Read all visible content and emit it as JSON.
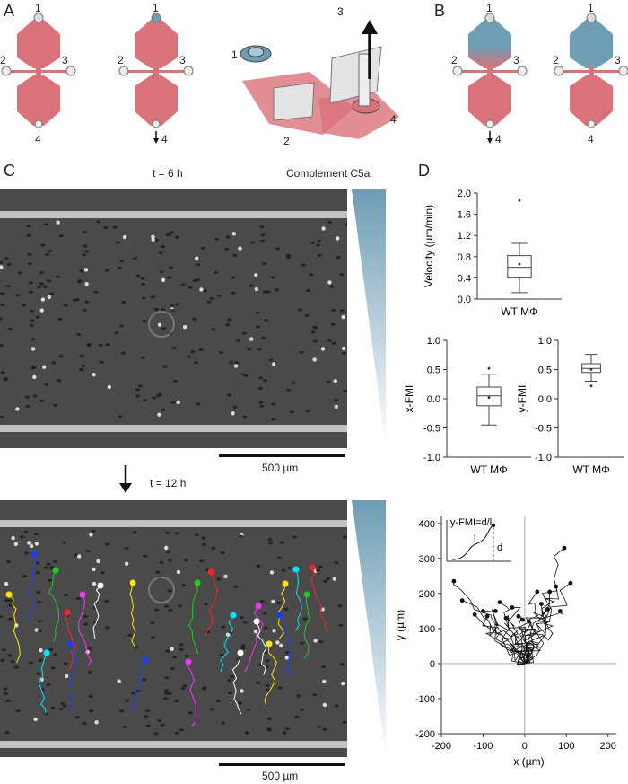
{
  "panels": {
    "A": "A",
    "B": "B",
    "C": "C",
    "D": "D"
  },
  "port_labels": {
    "p1": "1",
    "p2": "2",
    "p3": "3",
    "p4": "4"
  },
  "colors": {
    "channel": "#d9727a",
    "attractant": "#6e9db4",
    "track_black": "#111111"
  },
  "icons": [
    "arrow-down-icon",
    "arrow-up-icon",
    "gradient-wedge-icon"
  ],
  "panel_c": {
    "time1": "t = 6 h",
    "time2": "t = 12 h",
    "gradient_label": "Complement C5a",
    "scalebar1": "500 µm",
    "scalebar2": "500 µm"
  },
  "chart_data": [
    {
      "type": "box",
      "ylabel": "Velocity (µm/min)",
      "xlabel": "WT MΦ",
      "ylim": [
        0.0,
        2.0
      ],
      "yticks": [
        "0.0",
        "0.4",
        "0.8",
        "1.2",
        "1.6",
        "2.0"
      ],
      "yticks_values": [
        0,
        0.4,
        0.8,
        1.2,
        1.6,
        2.0
      ],
      "box": {
        "whisker_low": 0.12,
        "q1": 0.4,
        "median": 0.6,
        "q3": 0.82,
        "whisker_high": 1.05,
        "mean": 0.66,
        "outliers": [
          1.86
        ]
      }
    },
    {
      "type": "box",
      "ylabel": "x-FMI",
      "xlabel": "WT MΦ",
      "ylim": [
        -1.0,
        1.0
      ],
      "yticks": [
        "-1.0",
        "-0.5",
        "0.0",
        "0.5",
        "1.0"
      ],
      "yticks_values": [
        -1,
        -0.5,
        0,
        0.5,
        1
      ],
      "box": {
        "whisker_low": -0.45,
        "q1": -0.12,
        "median": 0.05,
        "q3": 0.2,
        "whisker_high": 0.42,
        "mean": 0.02,
        "outliers": [
          0.52
        ]
      }
    },
    {
      "type": "box",
      "ylabel": "y-FMI",
      "xlabel": "WT MΦ",
      "ylim": [
        -1.0,
        1.0
      ],
      "yticks": [
        "-1.0",
        "-0.5",
        "0.0",
        "0.5",
        "1.0"
      ],
      "yticks_values": [
        -1,
        -0.5,
        0,
        0.5,
        1
      ],
      "box": {
        "whisker_low": 0.3,
        "q1": 0.45,
        "median": 0.52,
        "q3": 0.6,
        "whisker_high": 0.76,
        "mean": 0.5,
        "outliers": [
          0.22
        ]
      }
    },
    {
      "type": "line",
      "title": "",
      "xlabel": "x (µm)",
      "ylabel": "y (µm)",
      "xlim": [
        -200,
        220
      ],
      "ylim": [
        -200,
        420
      ],
      "xticks": [
        "-200",
        "-100",
        "0",
        "100",
        "200"
      ],
      "xticks_values": [
        -200,
        -100,
        0,
        100,
        200
      ],
      "yticks": [
        "-200",
        "-100",
        "0",
        "100",
        "200",
        "300",
        "400"
      ],
      "yticks_values": [
        -200,
        -100,
        0,
        100,
        200,
        300,
        400
      ],
      "inset_label": "y-FMI=d/l",
      "inset_l": "l",
      "inset_d": "d",
      "endpoints": [
        [
          -170,
          235
        ],
        [
          -150,
          180
        ],
        [
          -120,
          140
        ],
        [
          -100,
          150
        ],
        [
          -90,
          135
        ],
        [
          -70,
          150
        ],
        [
          -60,
          175
        ],
        [
          -45,
          130
        ],
        [
          -30,
          160
        ],
        [
          -15,
          135
        ],
        [
          -5,
          125
        ],
        [
          10,
          120
        ],
        [
          30,
          205
        ],
        [
          40,
          170
        ],
        [
          55,
          155
        ],
        [
          60,
          205
        ],
        [
          75,
          220
        ],
        [
          85,
          150
        ],
        [
          95,
          330
        ],
        [
          110,
          230
        ]
      ]
    }
  ]
}
